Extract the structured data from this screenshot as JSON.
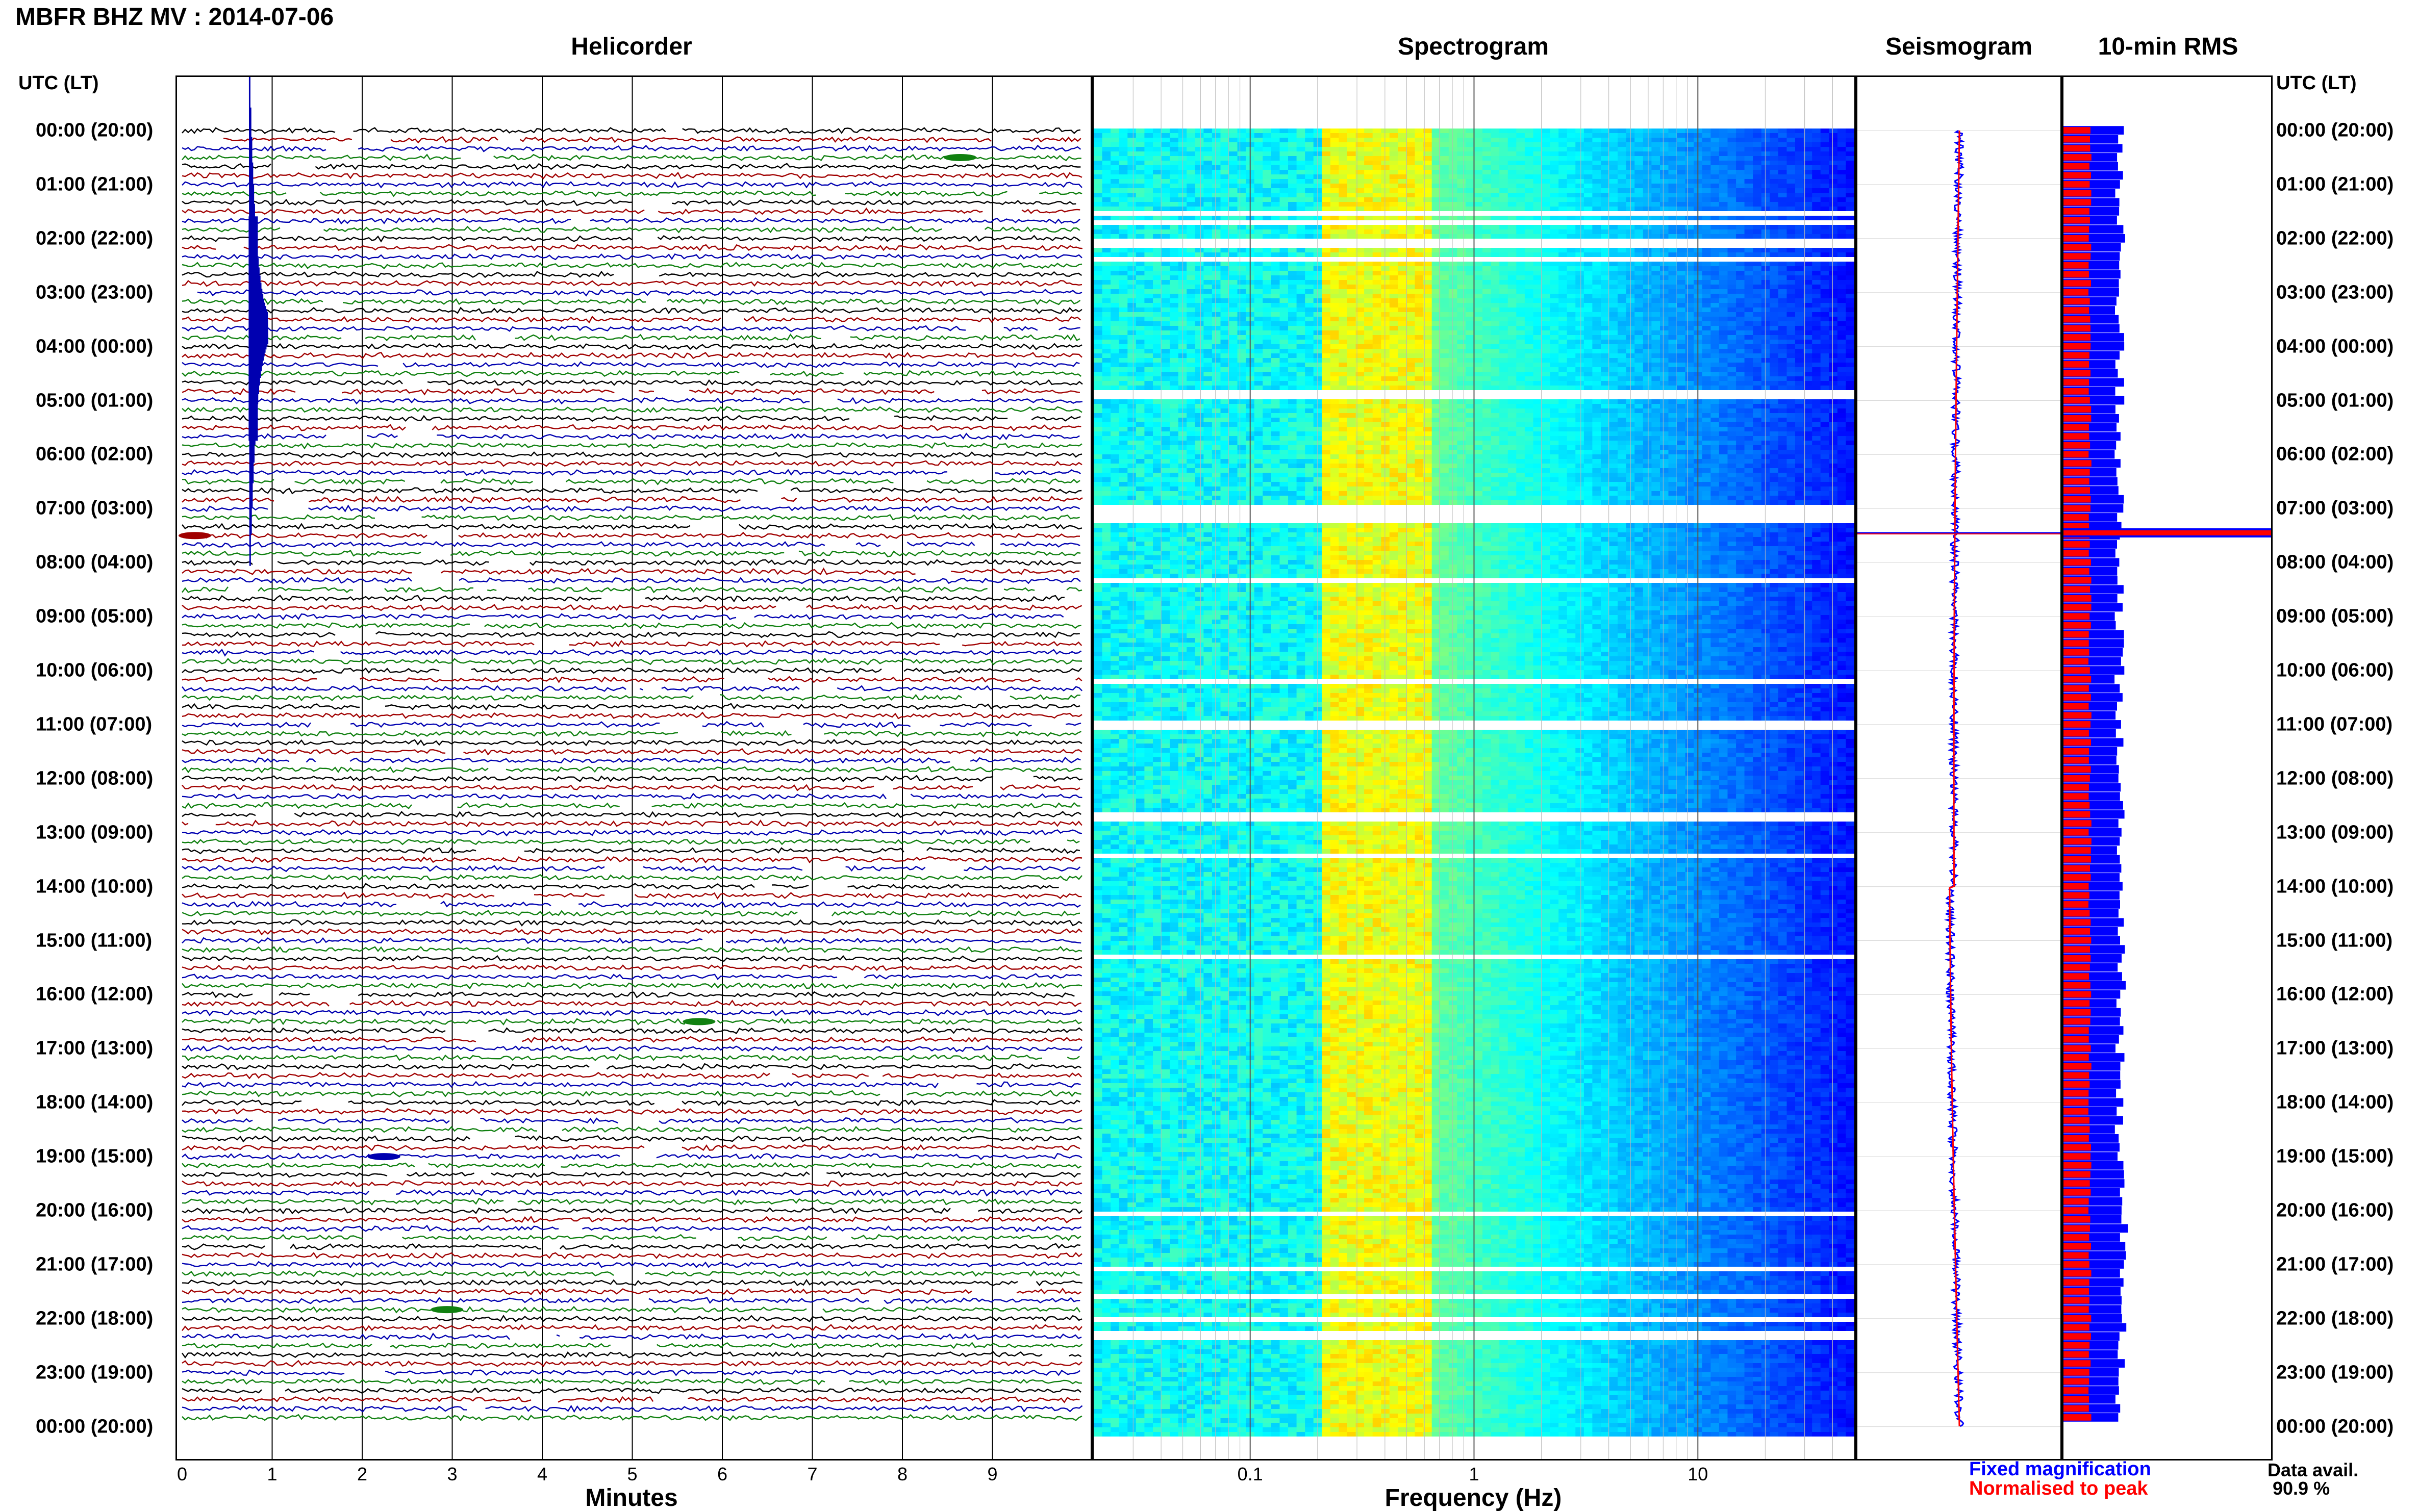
{
  "header": {
    "title": "MBFR BHZ MV : 2014-07-06"
  },
  "panels": {
    "helicorder": "Helicorder",
    "spectrogram": "Spectrogram",
    "seismogram": "Seismogram",
    "rms": "10-min RMS"
  },
  "axis": {
    "left_corner": "UTC (LT)",
    "right_corner": "UTC (LT)",
    "helicorder_xlabel": "Minutes",
    "spectrogram_xlabel": "Frequency (Hz)"
  },
  "legend": {
    "fixed": "Fixed magnification",
    "normalised": "Normalised to peak",
    "avail_label": "Data avail.",
    "avail_value": "90.9 %"
  },
  "colors": {
    "trace_cycle": [
      "#000000",
      "#a00000",
      "#0000b0",
      "#108010"
    ],
    "fixed": "#0000ff",
    "normalised": "#ff0000"
  },
  "chart_data": [
    {
      "type": "line",
      "title": "Helicorder",
      "xlabel": "Minutes",
      "xticks": [
        "0",
        "1",
        "2",
        "3",
        "4",
        "5",
        "6",
        "7",
        "8",
        "9"
      ],
      "xlim": [
        0,
        10
      ],
      "rows_per_hour": 6,
      "hours": 24,
      "time_labels": [
        "00:00 (20:00)",
        "01:00 (21:00)",
        "02:00 (22:00)",
        "03:00 (23:00)",
        "04:00 (00:00)",
        "05:00 (01:00)",
        "06:00 (02:00)",
        "07:00 (03:00)",
        "08:00 (04:00)",
        "09:00 (05:00)",
        "10:00 (06:00)",
        "11:00 (07:00)",
        "12:00 (08:00)",
        "13:00 (09:00)",
        "14:00 (10:00)",
        "15:00 (11:00)",
        "16:00 (12:00)",
        "17:00 (13:00)",
        "18:00 (14:00)",
        "19:00 (15:00)",
        "20:00 (16:00)",
        "21:00 (17:00)",
        "22:00 (18:00)",
        "23:00 (19:00)",
        "00:00 (20:00)"
      ],
      "events": [
        {
          "row": 22,
          "minute": 0.75,
          "amplitude": 10
        },
        {
          "row": 45,
          "minute": 0.0,
          "amplitude": 1.5
        },
        {
          "row": 3,
          "minute": 8.5,
          "amplitude": 1.5
        },
        {
          "row": 99,
          "minute": 5.6,
          "amplitude": 1.5
        },
        {
          "row": 114,
          "minute": 2.1,
          "amplitude": 1.5
        },
        {
          "row": 131,
          "minute": 2.8,
          "amplitude": 1.5
        }
      ]
    },
    {
      "type": "heatmap",
      "title": "Spectrogram",
      "xlabel": "Frequency (Hz)",
      "xscale": "log",
      "xticks": [
        "0.1",
        "1",
        "10"
      ],
      "xlim": [
        0.02,
        50
      ],
      "colormap": "jet",
      "gap_hours": [
        [
          4.75,
          4.95
        ],
        [
          6.85,
          7.25
        ],
        [
          25.0,
          25.0
        ]
      ]
    },
    {
      "type": "line",
      "title": "Seismogram",
      "series": [
        {
          "name": "Fixed magnification",
          "color": "#0000ff"
        },
        {
          "name": "Normalised to peak",
          "color": "#ff0000"
        }
      ],
      "spike_hour": 7.45
    },
    {
      "type": "bar",
      "title": "10-min RMS",
      "orientation": "horizontal",
      "series": [
        {
          "name": "Fixed magnification",
          "color": "#0000ff"
        },
        {
          "name": "Normalised to peak",
          "color": "#ff0000"
        }
      ],
      "hourly_level": [
        0.28,
        0.27,
        0.28,
        0.27,
        0.27,
        0.27,
        0.27,
        0.27,
        0.27,
        0.27,
        0.27,
        0.27,
        0.27,
        0.27,
        0.27,
        0.28,
        0.27,
        0.27,
        0.27,
        0.28,
        0.29,
        0.28,
        0.28,
        0.27
      ],
      "peak_hour": 7.45,
      "peak_level": 1.0
    }
  ]
}
